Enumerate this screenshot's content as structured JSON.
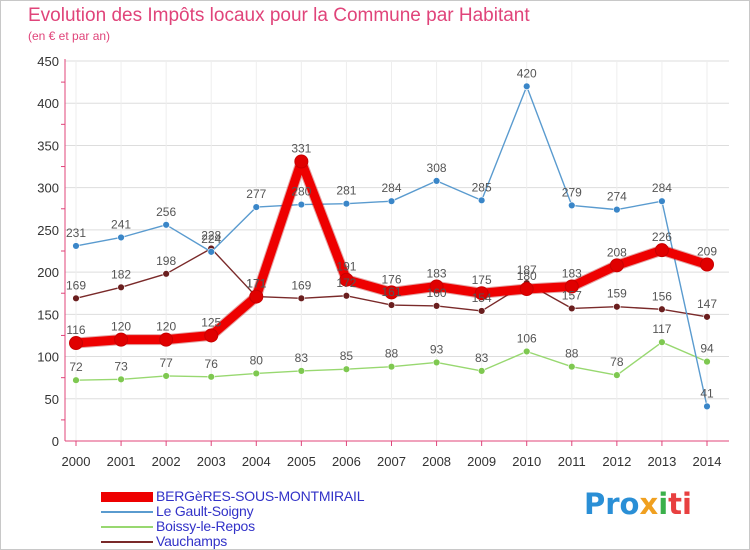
{
  "header": {
    "title": "Evolution des Impôts locaux pour la Commune par Habitant",
    "subtitle": "(en € et par an)"
  },
  "logo": {
    "part1": "Pro",
    "part2": "x",
    "part3": "i",
    "part4": "ti"
  },
  "colors": {
    "title": "#e0447a",
    "axis": "#e0447a",
    "grid": "#dddddd",
    "legend_text": "#3232c8"
  },
  "chart_data": {
    "type": "line",
    "title": "Evolution des Impôts locaux pour la Commune par Habitant",
    "subtitle": "(en € et par an)",
    "xlabel": "",
    "ylabel": "",
    "ylim": [
      0,
      450
    ],
    "yticks": [
      0,
      50,
      100,
      150,
      200,
      250,
      300,
      350,
      400,
      450
    ],
    "grid": true,
    "legend_position": "bottom-left",
    "categories": [
      "2000",
      "2001",
      "2002",
      "2003",
      "2004",
      "2005",
      "2006",
      "2007",
      "2008",
      "2009",
      "2010",
      "2011",
      "2012",
      "2013",
      "2014"
    ],
    "series": [
      {
        "name": "BERGèRES-SOUS-MONTMIRAIL",
        "color": "#ee0000",
        "marker": "#e00000",
        "values": [
          116,
          120,
          120,
          125,
          171,
          331,
          191,
          176,
          183,
          175,
          180,
          183,
          208,
          226,
          209
        ]
      },
      {
        "name": "Le Gault-Soigny",
        "color": "#5a9bcf",
        "marker": "#3a86c8",
        "values": [
          231,
          241,
          256,
          224,
          277,
          280,
          281,
          284,
          308,
          285,
          420,
          279,
          274,
          284,
          41
        ]
      },
      {
        "name": "Boissy-le-Repos",
        "color": "#98d870",
        "marker": "#7ec850",
        "values": [
          72,
          73,
          77,
          76,
          80,
          83,
          85,
          88,
          93,
          83,
          106,
          88,
          78,
          117,
          94
        ]
      },
      {
        "name": "Vauchamps",
        "color": "#7a2a2a",
        "marker": "#6a1e1e",
        "values": [
          169,
          182,
          198,
          228,
          171,
          169,
          172,
          161,
          160,
          154,
          187,
          157,
          159,
          156,
          147
        ]
      }
    ]
  }
}
